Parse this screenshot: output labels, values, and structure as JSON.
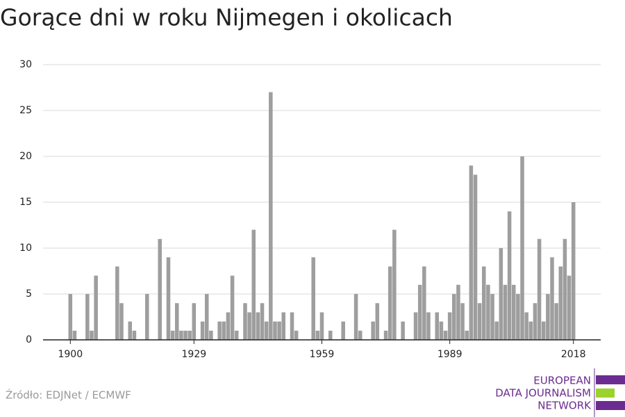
{
  "chart_data": {
    "type": "bar",
    "title": "Gorące dni w roku Nijmegen i okolicach",
    "x": [
      1900,
      1901,
      1902,
      1903,
      1904,
      1905,
      1906,
      1907,
      1908,
      1909,
      1910,
      1911,
      1912,
      1913,
      1914,
      1915,
      1916,
      1917,
      1918,
      1919,
      1920,
      1921,
      1922,
      1923,
      1924,
      1925,
      1926,
      1927,
      1928,
      1929,
      1930,
      1931,
      1932,
      1933,
      1934,
      1935,
      1936,
      1937,
      1938,
      1939,
      1940,
      1941,
      1942,
      1943,
      1944,
      1945,
      1946,
      1947,
      1948,
      1949,
      1950,
      1951,
      1952,
      1953,
      1954,
      1955,
      1956,
      1957,
      1958,
      1959,
      1960,
      1961,
      1962,
      1963,
      1964,
      1965,
      1966,
      1967,
      1968,
      1969,
      1970,
      1971,
      1972,
      1973,
      1974,
      1975,
      1976,
      1977,
      1978,
      1979,
      1980,
      1981,
      1982,
      1983,
      1984,
      1985,
      1986,
      1987,
      1988,
      1989,
      1990,
      1991,
      1992,
      1993,
      1994,
      1995,
      1996,
      1997,
      1998,
      1999,
      2000,
      2001,
      2002,
      2003,
      2004,
      2005,
      2006,
      2007,
      2008,
      2009,
      2010,
      2011,
      2012,
      2013,
      2014,
      2015,
      2016,
      2017,
      2018
    ],
    "values": [
      5,
      1,
      0,
      0,
      5,
      1,
      7,
      0,
      0,
      0,
      0,
      8,
      4,
      0,
      2,
      1,
      0,
      0,
      5,
      0,
      0,
      11,
      0,
      9,
      1,
      4,
      1,
      1,
      1,
      4,
      0,
      2,
      5,
      1,
      0,
      2,
      2,
      3,
      7,
      1,
      0,
      4,
      3,
      12,
      3,
      4,
      2,
      27,
      2,
      2,
      3,
      0,
      3,
      1,
      0,
      0,
      0,
      9,
      1,
      3,
      0,
      1,
      0,
      0,
      2,
      0,
      0,
      5,
      1,
      0,
      0,
      2,
      4,
      0,
      1,
      8,
      12,
      0,
      2,
      0,
      0,
      3,
      6,
      8,
      3,
      0,
      3,
      2,
      1,
      3,
      5,
      6,
      4,
      1,
      19,
      18,
      4,
      8,
      6,
      5,
      2,
      10,
      6,
      14,
      6,
      5,
      20,
      3,
      2,
      4,
      11,
      2,
      5,
      9,
      4,
      8,
      11,
      7,
      15
    ],
    "color": "#9e9e9e",
    "xlim": [
      1893.6,
      2024.4
    ],
    "xticks": [
      1900,
      1929,
      1959,
      1989,
      2018
    ],
    "ylim": [
      0,
      30
    ],
    "yticks": [
      0,
      5,
      10,
      15,
      20,
      25,
      30
    ],
    "grid": true
  },
  "footer": {
    "source": "Źródło: EDJNet / ECMWF",
    "logo": [
      "EUROPEAN",
      "DATA JOURNALISM",
      "NETWORK"
    ]
  }
}
